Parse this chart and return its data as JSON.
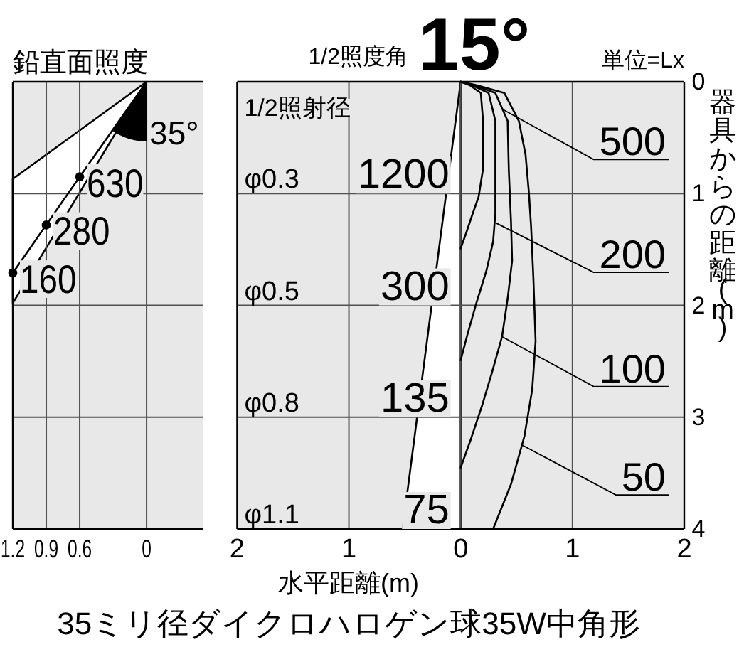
{
  "chart_data": [
    {
      "type": "line",
      "title": "鉛直面照度",
      "xlim": [
        1.2,
        -0.51
      ],
      "ylim": [
        4,
        0
      ],
      "xticks": [
        1.2,
        0.9,
        0.6,
        0
      ],
      "yticks": [
        0,
        1,
        2,
        3,
        4
      ],
      "grid": true,
      "tick_labels": "x",
      "series": [
        {
          "type": "area",
          "color": "#ffffff",
          "x": [
            0,
            1.2,
            1.2
          ],
          "values": [
            0,
            0.87,
            1.98
          ]
        },
        {
          "color": "#000000",
          "x": [
            0,
            0.6,
            0.9,
            1.2
          ],
          "values": [
            0,
            0.85,
            1.28,
            1.71
          ]
        },
        {
          "type": "scatter",
          "color": "#000000",
          "marker": "circle",
          "x": [
            0.6,
            0.9,
            1.2
          ],
          "values": [
            0.85,
            1.28,
            1.71
          ]
        }
      ],
      "annotations": [
        "35°",
        {
          "text": "630",
          "x": 0.6,
          "y": 0.85
        },
        {
          "text": "280",
          "x": 0.9,
          "y": 1.28
        },
        {
          "text": "160",
          "x": 1.2,
          "y": 1.71
        }
      ]
    },
    {
      "type": "line",
      "title": "1/2照度角",
      "subtitle": "15°",
      "xlabel": "水平距離(m)",
      "ylabel": "器具からの距離(m)",
      "xlim": [
        -2,
        2
      ],
      "ylim": [
        4,
        0
      ],
      "xticks": [
        {
          "value": -2,
          "label": "2"
        },
        {
          "value": -1,
          "label": "1"
        },
        0,
        1,
        2
      ],
      "yticks": [
        0,
        1,
        2,
        3,
        4
      ],
      "grid": true,
      "series": [
        {
          "type": "area",
          "color": "#ffffff",
          "x": [
            0,
            -0.52,
            0
          ],
          "values": [
            0,
            4,
            4
          ]
        },
        {
          "color": "#000000",
          "x": [
            0,
            0.08,
            0.18,
            0.2,
            0.2,
            0.16,
            0.1,
            0.05,
            0
          ],
          "values": [
            0,
            0.03,
            0.1,
            0.35,
            0.78,
            1.03,
            1.2,
            1.35,
            1.49
          ]
        },
        {
          "color": "#000000",
          "x": [
            0,
            0.1,
            0.25,
            0.31,
            0.31,
            0.31,
            0.29,
            0.23,
            0.14,
            0.055,
            0
          ],
          "values": [
            0,
            0.03,
            0.1,
            0.35,
            0.99,
            1.18,
            1.43,
            1.69,
            1.98,
            2.28,
            2.49
          ]
        },
        {
          "color": "#000000",
          "x": [
            0,
            0.12,
            0.31,
            0.42,
            0.43,
            0.45,
            0.46,
            0.42,
            0.37,
            0.28,
            0.19,
            0.09,
            0
          ],
          "values": [
            0,
            0.03,
            0.1,
            0.35,
            0.78,
            1.25,
            1.6,
            1.94,
            2.28,
            2.6,
            2.9,
            3.2,
            3.45
          ]
        },
        {
          "color": "#000000",
          "x": [
            0,
            0.14,
            0.39,
            0.52,
            0.58,
            0.61,
            0.63,
            0.65,
            0.67,
            0.64,
            0.57,
            0.45,
            0.29
          ],
          "values": [
            0,
            0.03,
            0.1,
            0.35,
            0.65,
            0.99,
            1.3,
            1.75,
            2.32,
            2.75,
            3.17,
            3.6,
            4
          ]
        }
      ],
      "annotations": [
        "単位=Lx",
        "1/2照射径",
        "φ0.3",
        "φ0.5",
        "φ0.8",
        "φ1.1",
        {
          "text": "1200",
          "x": 0,
          "y": 1
        },
        {
          "text": "300",
          "x": 0,
          "y": 2
        },
        {
          "text": "135",
          "x": 0,
          "y": 3
        },
        {
          "text": "75",
          "x": 0,
          "y": 4
        },
        {
          "text": "500",
          "x": 0.38,
          "y": 0.25
        },
        {
          "text": "200",
          "x": 0.31,
          "y": 1.26
        },
        {
          "text": "100",
          "x": 0.37,
          "y": 2.28
        },
        {
          "text": "50",
          "x": 0.55,
          "y": 3.25
        },
        "35ミリ径ダイクロハロゲン球35W中角形"
      ]
    }
  ]
}
